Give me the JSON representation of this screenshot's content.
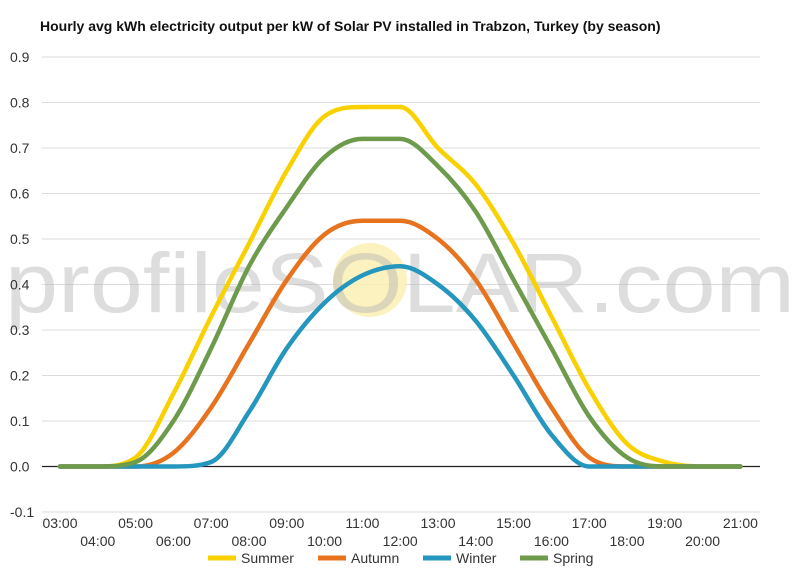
{
  "chart_data": {
    "type": "line",
    "title": "Hourly avg kWh electricity output per kW of Solar PV installed in Trabzon, Turkey (by season)",
    "xlabel": "",
    "ylabel": "",
    "x": [
      "03:00",
      "04:00",
      "05:00",
      "06:00",
      "07:00",
      "08:00",
      "09:00",
      "10:00",
      "11:00",
      "12:00",
      "13:00",
      "14:00",
      "15:00",
      "16:00",
      "17:00",
      "18:00",
      "19:00",
      "20:00",
      "21:00"
    ],
    "ylim": [
      -0.1,
      0.9
    ],
    "yticks": [
      "-0.1",
      "0.0",
      "0.1",
      "0.2",
      "0.3",
      "0.4",
      "0.5",
      "0.6",
      "0.7",
      "0.8",
      "0.9"
    ],
    "grid": true,
    "legend_position": "bottom",
    "series": [
      {
        "name": "Summer",
        "color": "#f9d100",
        "values": [
          0.0,
          0.0,
          0.02,
          0.16,
          0.33,
          0.49,
          0.65,
          0.77,
          0.79,
          0.79,
          0.7,
          0.62,
          0.49,
          0.33,
          0.17,
          0.05,
          0.01,
          0.0,
          0.0
        ]
      },
      {
        "name": "Autumn",
        "color": "#e8731f",
        "values": [
          0.0,
          0.0,
          0.0,
          0.03,
          0.13,
          0.27,
          0.41,
          0.51,
          0.54,
          0.54,
          0.5,
          0.41,
          0.27,
          0.13,
          0.02,
          0.0,
          0.0,
          0.0,
          0.0
        ]
      },
      {
        "name": "Winter",
        "color": "#2596be",
        "values": [
          0.0,
          0.0,
          0.0,
          0.0,
          0.01,
          0.12,
          0.26,
          0.36,
          0.42,
          0.44,
          0.4,
          0.32,
          0.2,
          0.07,
          0.0,
          0.0,
          0.0,
          0.0,
          0.0
        ]
      },
      {
        "name": "Spring",
        "color": "#6e9b4b",
        "values": [
          0.0,
          0.0,
          0.01,
          0.1,
          0.26,
          0.44,
          0.57,
          0.68,
          0.72,
          0.72,
          0.66,
          0.56,
          0.41,
          0.26,
          0.11,
          0.02,
          0.0,
          0.0,
          0.0
        ]
      }
    ]
  },
  "watermark": {
    "text": "profileSOLAR.com"
  }
}
